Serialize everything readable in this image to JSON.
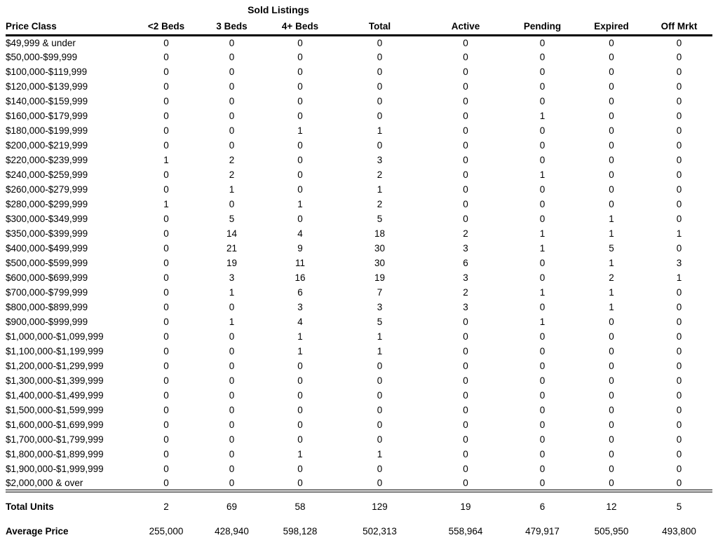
{
  "table": {
    "sold_group_label": "Sold Listings",
    "columns": [
      "Price Class",
      "<2 Beds",
      "3 Beds",
      "4+ Beds",
      "Total",
      "Active",
      "Pending",
      "Expired",
      "Off Mrkt"
    ],
    "rows": [
      {
        "price_class": "$49,999 & under",
        "values": [
          "0",
          "0",
          "0",
          "0",
          "0",
          "0",
          "0",
          "0"
        ]
      },
      {
        "price_class": "$50,000-$99,999",
        "values": [
          "0",
          "0",
          "0",
          "0",
          "0",
          "0",
          "0",
          "0"
        ]
      },
      {
        "price_class": "$100,000-$119,999",
        "values": [
          "0",
          "0",
          "0",
          "0",
          "0",
          "0",
          "0",
          "0"
        ]
      },
      {
        "price_class": "$120,000-$139,999",
        "values": [
          "0",
          "0",
          "0",
          "0",
          "0",
          "0",
          "0",
          "0"
        ]
      },
      {
        "price_class": "$140,000-$159,999",
        "values": [
          "0",
          "0",
          "0",
          "0",
          "0",
          "0",
          "0",
          "0"
        ]
      },
      {
        "price_class": "$160,000-$179,999",
        "values": [
          "0",
          "0",
          "0",
          "0",
          "0",
          "1",
          "0",
          "0"
        ]
      },
      {
        "price_class": "$180,000-$199,999",
        "values": [
          "0",
          "0",
          "1",
          "1",
          "0",
          "0",
          "0",
          "0"
        ]
      },
      {
        "price_class": "$200,000-$219,999",
        "values": [
          "0",
          "0",
          "0",
          "0",
          "0",
          "0",
          "0",
          "0"
        ]
      },
      {
        "price_class": "$220,000-$239,999",
        "values": [
          "1",
          "2",
          "0",
          "3",
          "0",
          "0",
          "0",
          "0"
        ]
      },
      {
        "price_class": "$240,000-$259,999",
        "values": [
          "0",
          "2",
          "0",
          "2",
          "0",
          "1",
          "0",
          "0"
        ]
      },
      {
        "price_class": "$260,000-$279,999",
        "values": [
          "0",
          "1",
          "0",
          "1",
          "0",
          "0",
          "0",
          "0"
        ]
      },
      {
        "price_class": "$280,000-$299,999",
        "values": [
          "1",
          "0",
          "1",
          "2",
          "0",
          "0",
          "0",
          "0"
        ]
      },
      {
        "price_class": "$300,000-$349,999",
        "values": [
          "0",
          "5",
          "0",
          "5",
          "0",
          "0",
          "1",
          "0"
        ]
      },
      {
        "price_class": "$350,000-$399,999",
        "values": [
          "0",
          "14",
          "4",
          "18",
          "2",
          "1",
          "1",
          "1"
        ]
      },
      {
        "price_class": "$400,000-$499,999",
        "values": [
          "0",
          "21",
          "9",
          "30",
          "3",
          "1",
          "5",
          "0"
        ]
      },
      {
        "price_class": "$500,000-$599,999",
        "values": [
          "0",
          "19",
          "11",
          "30",
          "6",
          "0",
          "1",
          "3"
        ]
      },
      {
        "price_class": "$600,000-$699,999",
        "values": [
          "0",
          "3",
          "16",
          "19",
          "3",
          "0",
          "2",
          "1"
        ]
      },
      {
        "price_class": "$700,000-$799,999",
        "values": [
          "0",
          "1",
          "6",
          "7",
          "2",
          "1",
          "1",
          "0"
        ]
      },
      {
        "price_class": "$800,000-$899,999",
        "values": [
          "0",
          "0",
          "3",
          "3",
          "3",
          "0",
          "1",
          "0"
        ]
      },
      {
        "price_class": "$900,000-$999,999",
        "values": [
          "0",
          "1",
          "4",
          "5",
          "0",
          "1",
          "0",
          "0"
        ]
      },
      {
        "price_class": "$1,000,000-$1,099,999",
        "values": [
          "0",
          "0",
          "1",
          "1",
          "0",
          "0",
          "0",
          "0"
        ]
      },
      {
        "price_class": "$1,100,000-$1,199,999",
        "values": [
          "0",
          "0",
          "1",
          "1",
          "0",
          "0",
          "0",
          "0"
        ]
      },
      {
        "price_class": "$1,200,000-$1,299,999",
        "values": [
          "0",
          "0",
          "0",
          "0",
          "0",
          "0",
          "0",
          "0"
        ]
      },
      {
        "price_class": "$1,300,000-$1,399,999",
        "values": [
          "0",
          "0",
          "0",
          "0",
          "0",
          "0",
          "0",
          "0"
        ]
      },
      {
        "price_class": "$1,400,000-$1,499,999",
        "values": [
          "0",
          "0",
          "0",
          "0",
          "0",
          "0",
          "0",
          "0"
        ]
      },
      {
        "price_class": "$1,500,000-$1,599,999",
        "values": [
          "0",
          "0",
          "0",
          "0",
          "0",
          "0",
          "0",
          "0"
        ]
      },
      {
        "price_class": "$1,600,000-$1,699,999",
        "values": [
          "0",
          "0",
          "0",
          "0",
          "0",
          "0",
          "0",
          "0"
        ]
      },
      {
        "price_class": "$1,700,000-$1,799,999",
        "values": [
          "0",
          "0",
          "0",
          "0",
          "0",
          "0",
          "0",
          "0"
        ]
      },
      {
        "price_class": "$1,800,000-$1,899,999",
        "values": [
          "0",
          "0",
          "1",
          "1",
          "0",
          "0",
          "0",
          "0"
        ]
      },
      {
        "price_class": "$1,900,000-$1,999,999",
        "values": [
          "0",
          "0",
          "0",
          "0",
          "0",
          "0",
          "0",
          "0"
        ]
      },
      {
        "price_class": "$2,000,000 & over",
        "values": [
          "0",
          "0",
          "0",
          "0",
          "0",
          "0",
          "0",
          "0"
        ]
      }
    ],
    "total_units": {
      "label": "Total Units",
      "values": [
        "2",
        "69",
        "58",
        "129",
        "19",
        "6",
        "12",
        "5"
      ]
    },
    "average_price": {
      "label": "Average Price",
      "values": [
        "255,000",
        "428,940",
        "598,128",
        "502,313",
        "558,964",
        "479,917",
        "505,950",
        "493,800"
      ]
    },
    "text_color": "#000000",
    "background_color": "#ffffff"
  }
}
